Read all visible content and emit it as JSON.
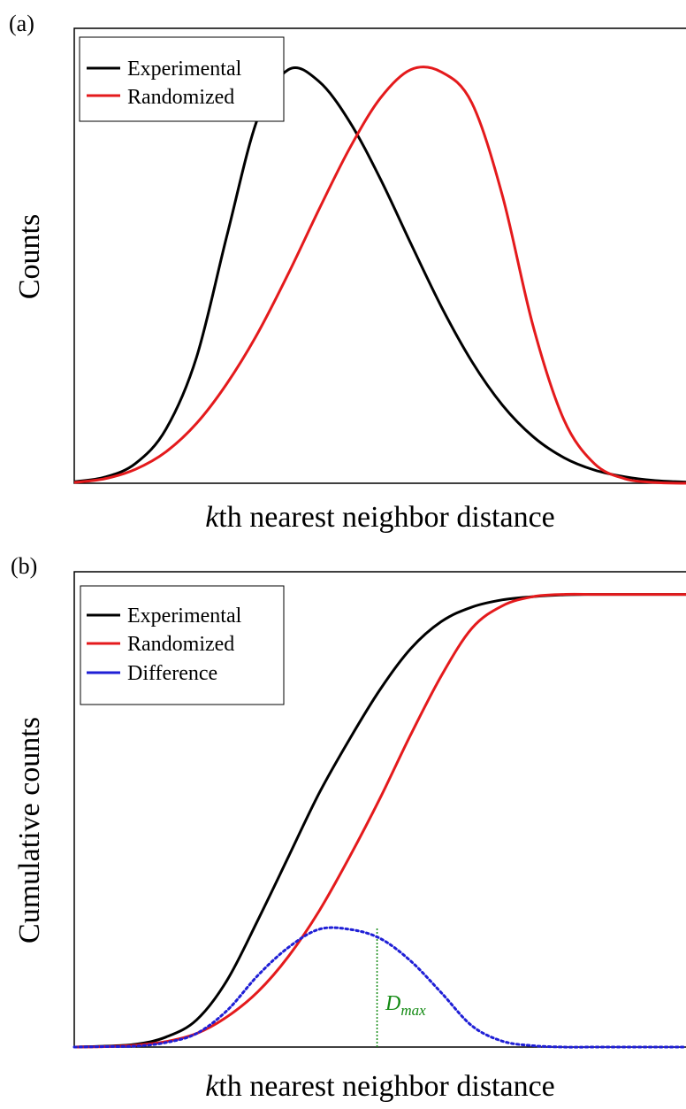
{
  "panels": [
    {
      "panel_label": "(a)",
      "ylabel": "Counts",
      "xlabel_italic": "k",
      "xlabel_rest": "th nearest neighbor distance",
      "legend": [
        "Experimental",
        "Randomized"
      ]
    },
    {
      "panel_label": "(b)",
      "ylabel": "Cumulative counts",
      "xlabel_italic": "k",
      "xlabel_rest": "th nearest neighbor distance",
      "legend": [
        "Experimental",
        "Randomized",
        "Difference"
      ],
      "annotation": {
        "main": "D",
        "sub": "max"
      }
    }
  ],
  "colors": {
    "experimental": "#000000",
    "randomized": "#e41a1c",
    "difference": "#1f1fd6",
    "dmax": "#138a13"
  },
  "chart_data": [
    {
      "type": "line",
      "title": "",
      "xlabel": "kth nearest neighbor distance",
      "ylabel": "Counts",
      "xlim": [
        0,
        1
      ],
      "ylim": [
        0,
        1.2
      ],
      "grid": false,
      "legend_position": "top-left",
      "series": [
        {
          "name": "Experimental",
          "color": "#000000",
          "x": [
            0,
            0.05,
            0.1,
            0.15,
            0.2,
            0.25,
            0.3,
            0.35,
            0.4,
            0.45,
            0.5,
            0.55,
            0.6,
            0.65,
            0.7,
            0.75,
            0.8,
            0.85,
            0.9,
            0.95,
            1
          ],
          "y": [
            0.004,
            0.016,
            0.052,
            0.143,
            0.333,
            0.656,
            0.963,
            1.091,
            1.06,
            0.954,
            0.804,
            0.633,
            0.466,
            0.321,
            0.206,
            0.123,
            0.068,
            0.035,
            0.017,
            0.007,
            0.003
          ]
        },
        {
          "name": "Randomized",
          "color": "#e41a1c",
          "x": [
            0,
            0.05,
            0.1,
            0.15,
            0.2,
            0.25,
            0.3,
            0.35,
            0.4,
            0.45,
            0.5,
            0.55,
            0.6,
            0.65,
            0.7,
            0.75,
            0.8,
            0.85,
            0.9,
            0.95,
            1
          ],
          "y": [
            0.002,
            0.012,
            0.037,
            0.083,
            0.158,
            0.264,
            0.396,
            0.553,
            0.722,
            0.883,
            1.015,
            1.091,
            1.085,
            1.003,
            0.758,
            0.415,
            0.169,
            0.052,
            0.012,
            0.002,
            0.0
          ]
        }
      ]
    },
    {
      "type": "line",
      "title": "",
      "xlabel": "kth nearest neighbor distance",
      "ylabel": "Cumulative counts",
      "xlim": [
        0,
        1
      ],
      "ylim": [
        0,
        1.05
      ],
      "grid": false,
      "legend_position": "top-left",
      "series": [
        {
          "name": "Experimental",
          "color": "#000000",
          "x": [
            0,
            0.05,
            0.1,
            0.15,
            0.2,
            0.25,
            0.3,
            0.35,
            0.4,
            0.45,
            0.5,
            0.55,
            0.6,
            0.65,
            0.7,
            0.75,
            0.8,
            0.85,
            0.9,
            0.95,
            1
          ],
          "y": [
            0.0,
            0.002,
            0.006,
            0.022,
            0.06,
            0.148,
            0.28,
            0.42,
            0.56,
            0.68,
            0.79,
            0.88,
            0.94,
            0.972,
            0.988,
            0.995,
            0.999,
            1.0,
            1.0,
            1.0,
            1.0
          ]
        },
        {
          "name": "Randomized",
          "color": "#e41a1c",
          "x": [
            0,
            0.05,
            0.1,
            0.15,
            0.2,
            0.25,
            0.3,
            0.35,
            0.4,
            0.45,
            0.5,
            0.55,
            0.6,
            0.65,
            0.7,
            0.75,
            0.8,
            0.85,
            0.9,
            0.95,
            1
          ],
          "y": [
            0.0,
            0.001,
            0.004,
            0.012,
            0.03,
            0.067,
            0.122,
            0.2,
            0.3,
            0.42,
            0.55,
            0.69,
            0.82,
            0.925,
            0.975,
            0.995,
            1.0,
            1.0,
            1.0,
            1.0,
            1.0
          ]
        },
        {
          "name": "Difference",
          "color": "#1f1fd6",
          "style": "dotted",
          "x": [
            0,
            0.05,
            0.1,
            0.15,
            0.2,
            0.25,
            0.3,
            0.35,
            0.4,
            0.45,
            0.5,
            0.55,
            0.6,
            0.65,
            0.7,
            0.75,
            0.8,
            0.85,
            0.9,
            0.95,
            1
          ],
          "y": [
            0.0,
            0.001,
            0.002,
            0.01,
            0.03,
            0.081,
            0.158,
            0.22,
            0.26,
            0.26,
            0.24,
            0.19,
            0.12,
            0.047,
            0.013,
            0.003,
            0.0,
            0.0,
            0.0,
            0.0,
            0.0
          ]
        }
      ],
      "annotations": [
        {
          "text": "Dmax",
          "x": 0.495,
          "y": 0.262
        }
      ]
    }
  ]
}
